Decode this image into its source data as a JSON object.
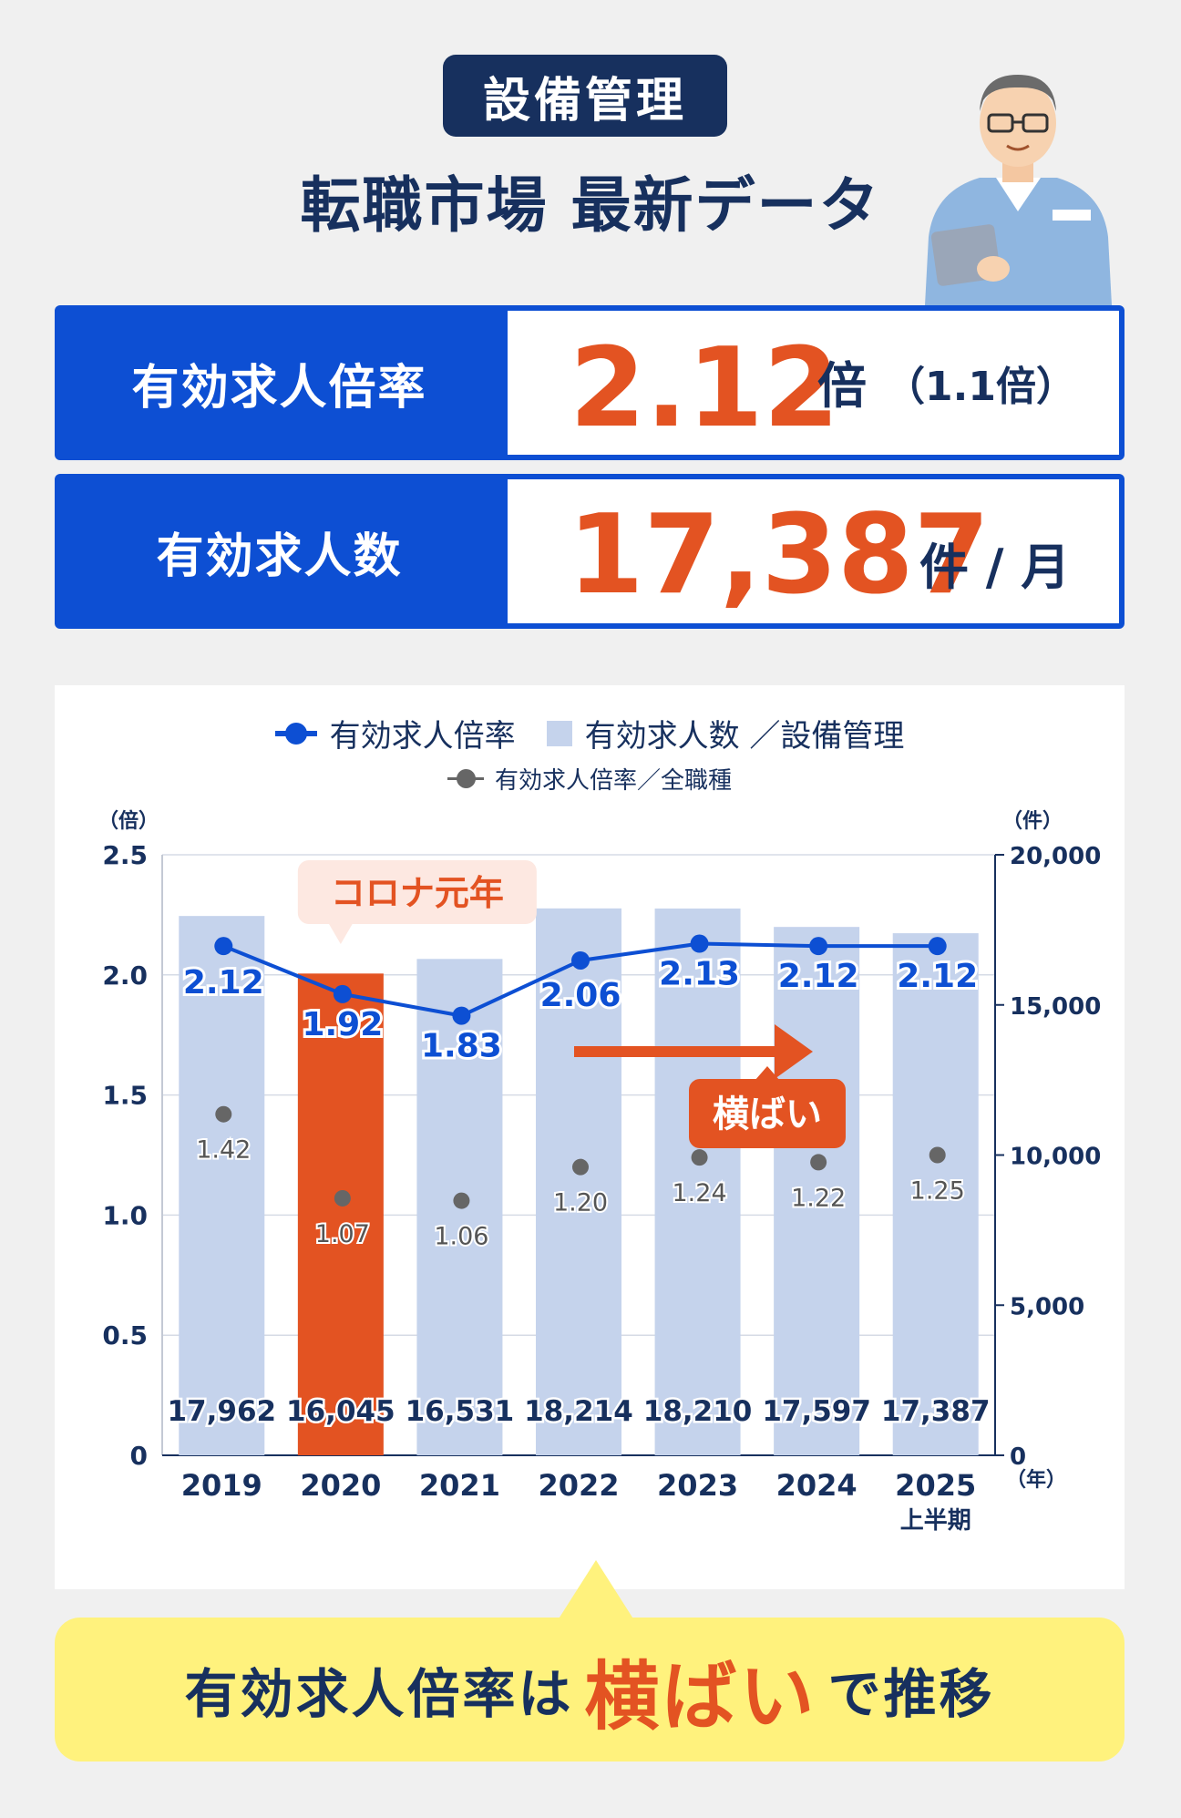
{
  "header": {
    "category": "設備管理",
    "title": "転職市場 最新データ"
  },
  "stats": {
    "ratio_label": "有効求人倍率",
    "ratio_value": "2.12",
    "ratio_unit": "倍",
    "ratio_sub": "（1.1倍）",
    "openings_label": "有効求人数",
    "openings_value": "17,387",
    "openings_unit": "件 / 月"
  },
  "legend": {
    "line": "有効求人倍率",
    "bar": "有効求人数 ／設備管理",
    "dot": "有効求人倍率／全職種"
  },
  "annotations": {
    "covid": "コロナ元年",
    "flat": "横ばい"
  },
  "footer": {
    "pre": "有効求人倍率は",
    "em": "横ばい",
    "post": "で推移"
  },
  "colors": {
    "navy": "#17305e",
    "blue": "#0d4fd3",
    "orange": "#e35322",
    "bar": "#c5d3ec",
    "dot": "#666666"
  },
  "chart_data": {
    "type": "bar",
    "categories": [
      "2019",
      "2020",
      "2021",
      "2022",
      "2023",
      "2024",
      "2025"
    ],
    "category_sublabels": [
      "",
      "",
      "",
      "",
      "",
      "",
      "上半期"
    ],
    "y_left": {
      "unit": "（倍）",
      "ticks": [
        "0",
        "0.5",
        "1.0",
        "1.5",
        "2.0",
        "2.5"
      ],
      "range": [
        0,
        2.5
      ]
    },
    "y_right": {
      "unit": "（件）",
      "ticks": [
        "0",
        "5,000",
        "10,000",
        "15,000",
        "20,000"
      ],
      "range": [
        0,
        20000
      ]
    },
    "x_unit": "（年）",
    "highlight_index": 1,
    "series": [
      {
        "name": "有効求人数 ／設備管理",
        "kind": "bar",
        "axis": "right",
        "values": [
          17962,
          16045,
          16531,
          18214,
          18210,
          17597,
          17387
        ],
        "labels": [
          "17,962",
          "16,045",
          "16,531",
          "18,214",
          "18,210",
          "17,597",
          "17,387"
        ]
      },
      {
        "name": "有効求人倍率",
        "kind": "line",
        "axis": "left",
        "values": [
          2.12,
          1.92,
          1.83,
          2.06,
          2.13,
          2.12,
          2.12
        ],
        "labels": [
          "2.12",
          "1.92",
          "1.83",
          "2.06",
          "2.13",
          "2.12",
          "2.12"
        ]
      },
      {
        "name": "有効求人倍率／全職種",
        "kind": "scatter",
        "axis": "left",
        "values": [
          1.42,
          1.07,
          1.06,
          1.2,
          1.24,
          1.22,
          1.25
        ],
        "labels": [
          "1.42",
          "1.07",
          "1.06",
          "1.20",
          "1.24",
          "1.22",
          "1.25"
        ]
      }
    ]
  }
}
